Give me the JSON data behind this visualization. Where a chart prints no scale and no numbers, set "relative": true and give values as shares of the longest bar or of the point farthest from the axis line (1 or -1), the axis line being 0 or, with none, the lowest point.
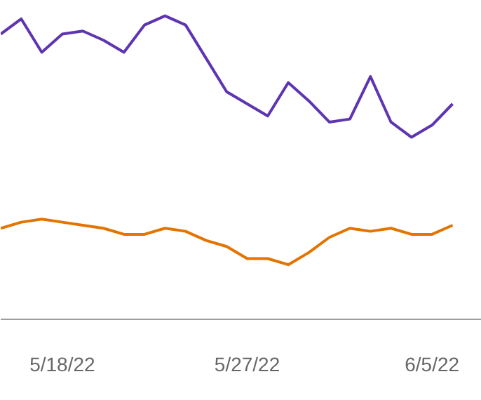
{
  "chart_data": {
    "type": "line",
    "relative": true,
    "marker": "none",
    "line_style": "solid",
    "x": [
      "2022-05-15",
      "2022-05-16",
      "2022-05-17",
      "2022-05-18",
      "2022-05-19",
      "2022-05-20",
      "2022-05-21",
      "2022-05-22",
      "2022-05-23",
      "2022-05-24",
      "2022-05-25",
      "2022-05-26",
      "2022-05-27",
      "2022-05-28",
      "2022-05-29",
      "2022-05-30",
      "2022-05-31",
      "2022-06-01",
      "2022-06-02",
      "2022-06-03",
      "2022-06-04",
      "2022-06-05",
      "2022-06-06"
    ],
    "xlim": [
      "2022-05-15",
      "2022-06-07T10:00"
    ],
    "xticks": [
      {
        "value": "2022-05-18",
        "label": "5/18/22"
      },
      {
        "value": "2022-05-27",
        "label": "5/27/22"
      },
      {
        "value": "2022-06-05",
        "label": "6/5/22"
      }
    ],
    "series": [
      {
        "color": "#5e35b1",
        "values": [
          0.94,
          0.99,
          0.88,
          0.94,
          0.95,
          0.92,
          0.88,
          0.97,
          1.0,
          0.97,
          0.86,
          0.75,
          0.71,
          0.67,
          0.78,
          0.72,
          0.65,
          0.66,
          0.8,
          0.65,
          0.6,
          0.64,
          0.71
        ]
      },
      {
        "color": "#e37400",
        "values": [
          0.3,
          0.32,
          0.33,
          0.32,
          0.31,
          0.3,
          0.28,
          0.28,
          0.3,
          0.29,
          0.26,
          0.24,
          0.2,
          0.2,
          0.18,
          0.22,
          0.27,
          0.3,
          0.29,
          0.3,
          0.28,
          0.28,
          0.31
        ]
      }
    ]
  }
}
